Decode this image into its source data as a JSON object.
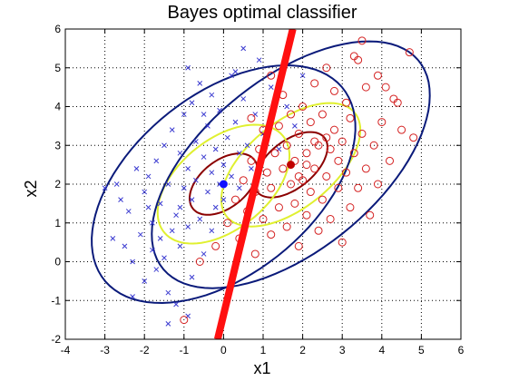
{
  "chart_data": {
    "type": "scatter",
    "title": "Bayes optimal classifier",
    "xlabel": "x1",
    "ylabel": "x2",
    "xlim": [
      -4,
      6
    ],
    "ylim": [
      -2,
      6
    ],
    "xticks": [
      -4,
      -3,
      -2,
      -1,
      0,
      1,
      2,
      3,
      4,
      5,
      6
    ],
    "yticks": [
      -2,
      -1,
      0,
      1,
      2,
      3,
      4,
      5,
      6
    ],
    "xtick_labels": [
      "-4",
      "-3",
      "-2",
      "-1",
      "0",
      "1",
      "2",
      "3",
      "4",
      "5",
      "6"
    ],
    "ytick_labels": [
      "-2",
      "-1",
      "0",
      "1",
      "2",
      "3",
      "4",
      "5",
      "6"
    ],
    "grid": true,
    "series": [
      {
        "marker": "x",
        "color": "#3a3ad0",
        "points": [
          [
            -3.0,
            1.9
          ],
          [
            -2.8,
            0.6
          ],
          [
            -2.7,
            2.0
          ],
          [
            -2.5,
            0.4
          ],
          [
            -2.4,
            1.3
          ],
          [
            -2.3,
            0.0
          ],
          [
            -2.2,
            2.4
          ],
          [
            -2.1,
            0.7
          ],
          [
            -2.0,
            -0.5
          ],
          [
            -2.0,
            1.8
          ],
          [
            -1.9,
            2.2
          ],
          [
            -1.8,
            0.3
          ],
          [
            -1.8,
            1.0
          ],
          [
            -1.7,
            -0.2
          ],
          [
            -1.7,
            2.6
          ],
          [
            -1.6,
            1.5
          ],
          [
            -1.5,
            0.1
          ],
          [
            -1.5,
            3.0
          ],
          [
            -1.4,
            -0.8
          ],
          [
            -1.4,
            2.0
          ],
          [
            -1.3,
            0.8
          ],
          [
            -1.3,
            3.4
          ],
          [
            -1.2,
            1.2
          ],
          [
            -1.2,
            -1.1
          ],
          [
            -1.1,
            2.8
          ],
          [
            -1.1,
            0.4
          ],
          [
            -1.0,
            1.9
          ],
          [
            -1.0,
            3.8
          ],
          [
            -0.9,
            0.9
          ],
          [
            -0.9,
            2.4
          ],
          [
            -0.8,
            1.6
          ],
          [
            -0.8,
            -0.4
          ],
          [
            -0.8,
            4.1
          ],
          [
            -0.7,
            2.1
          ],
          [
            -0.7,
            3.1
          ],
          [
            -0.6,
            1.1
          ],
          [
            -0.6,
            4.6
          ],
          [
            -0.5,
            2.7
          ],
          [
            -0.5,
            0.2
          ],
          [
            -0.4,
            1.8
          ],
          [
            -0.4,
            3.5
          ],
          [
            -0.3,
            2.3
          ],
          [
            -0.3,
            4.3
          ],
          [
            -0.2,
            1.4
          ],
          [
            -0.2,
            2.9
          ],
          [
            -0.1,
            2.0
          ],
          [
            -0.1,
            3.9
          ],
          [
            0.0,
            2.5
          ],
          [
            0.0,
            1.6
          ],
          [
            0.1,
            3.2
          ],
          [
            0.2,
            2.2
          ],
          [
            0.2,
            4.8
          ],
          [
            0.3,
            3.6
          ],
          [
            0.4,
            2.8
          ],
          [
            0.4,
            1.9
          ],
          [
            0.5,
            4.2
          ],
          [
            0.6,
            3.0
          ],
          [
            0.7,
            2.4
          ],
          [
            0.8,
            3.8
          ],
          [
            0.9,
            5.2
          ],
          [
            1.0,
            3.3
          ],
          [
            1.2,
            4.5
          ],
          [
            1.4,
            2.9
          ],
          [
            1.6,
            4.0
          ],
          [
            1.8,
            3.5
          ],
          [
            2.0,
            4.8
          ],
          [
            -1.4,
            -1.6
          ],
          [
            -0.9,
            -1.4
          ],
          [
            -2.3,
            -0.9
          ],
          [
            -1.9,
            1.4
          ],
          [
            -1.6,
            0.6
          ],
          [
            -0.3,
            0.8
          ],
          [
            0.5,
            5.5
          ],
          [
            -0.5,
            3.8
          ],
          [
            -0.9,
            5.0
          ],
          [
            -2.6,
            1.6
          ],
          [
            -1.1,
            1.4
          ],
          [
            0.3,
            4.9
          ]
        ]
      },
      {
        "marker": "o",
        "color": "#d42020",
        "points": [
          [
            -1.0,
            -1.5
          ],
          [
            -0.6,
            0.0
          ],
          [
            -0.2,
            0.4
          ],
          [
            0.1,
            1.0
          ],
          [
            0.3,
            1.6
          ],
          [
            0.4,
            0.6
          ],
          [
            0.5,
            2.1
          ],
          [
            0.6,
            1.3
          ],
          [
            0.7,
            2.6
          ],
          [
            0.8,
            0.2
          ],
          [
            0.8,
            1.8
          ],
          [
            0.9,
            2.9
          ],
          [
            1.0,
            1.1
          ],
          [
            1.0,
            3.4
          ],
          [
            1.1,
            2.3
          ],
          [
            1.2,
            0.7
          ],
          [
            1.2,
            1.9
          ],
          [
            1.3,
            2.8
          ],
          [
            1.4,
            3.5
          ],
          [
            1.4,
            1.4
          ],
          [
            1.5,
            2.4
          ],
          [
            1.5,
            4.3
          ],
          [
            1.6,
            0.9
          ],
          [
            1.6,
            3.0
          ],
          [
            1.7,
            2.0
          ],
          [
            1.7,
            3.8
          ],
          [
            1.8,
            1.5
          ],
          [
            1.8,
            2.6
          ],
          [
            1.9,
            3.3
          ],
          [
            1.9,
            0.4
          ],
          [
            2.0,
            2.1
          ],
          [
            2.0,
            4.0
          ],
          [
            2.1,
            1.2
          ],
          [
            2.1,
            2.8
          ],
          [
            2.2,
            3.6
          ],
          [
            2.2,
            1.8
          ],
          [
            2.3,
            2.4
          ],
          [
            2.3,
            4.6
          ],
          [
            2.4,
            3.0
          ],
          [
            2.4,
            0.8
          ],
          [
            2.5,
            1.6
          ],
          [
            2.5,
            3.8
          ],
          [
            2.6,
            2.2
          ],
          [
            2.6,
            5.0
          ],
          [
            2.7,
            2.9
          ],
          [
            2.7,
            1.1
          ],
          [
            2.8,
            3.4
          ],
          [
            2.8,
            4.4
          ],
          [
            2.9,
            1.9
          ],
          [
            2.9,
            2.6
          ],
          [
            3.0,
            3.1
          ],
          [
            3.0,
            0.5
          ],
          [
            3.1,
            2.3
          ],
          [
            3.1,
            4.1
          ],
          [
            3.2,
            1.4
          ],
          [
            3.2,
            3.7
          ],
          [
            3.3,
            2.8
          ],
          [
            3.3,
            5.3
          ],
          [
            3.4,
            1.9
          ],
          [
            3.5,
            3.3
          ],
          [
            3.6,
            2.4
          ],
          [
            3.6,
            4.5
          ],
          [
            3.7,
            1.2
          ],
          [
            3.8,
            3.0
          ],
          [
            3.9,
            2.0
          ],
          [
            3.9,
            4.8
          ],
          [
            4.0,
            3.6
          ],
          [
            4.2,
            2.6
          ],
          [
            4.3,
            4.2
          ],
          [
            4.5,
            3.4
          ],
          [
            4.7,
            5.4
          ],
          [
            4.8,
            3.2
          ],
          [
            3.5,
            5.7
          ],
          [
            4.1,
            4.5
          ],
          [
            2.6,
            3.2
          ],
          [
            1.9,
            2.2
          ],
          [
            2.3,
            3.1
          ],
          [
            2.1,
            2.5
          ],
          [
            0.7,
            3.7
          ],
          [
            1.2,
            4.8
          ],
          [
            4.4,
            4.1
          ],
          [
            3.4,
            5.2
          ]
        ]
      }
    ],
    "means": [
      {
        "x": 0.0,
        "y": 2.0,
        "color": "#1010ff"
      },
      {
        "x": 1.7,
        "y": 2.5,
        "color": "#c00000"
      }
    ],
    "ellipses": [
      {
        "cx": 0.0,
        "cy": 2.0,
        "rx": 1.0,
        "ry": 0.6,
        "angle": 40,
        "color": "#8b0000"
      },
      {
        "cx": 1.7,
        "cy": 2.5,
        "rx": 1.1,
        "ry": 0.6,
        "angle": 40,
        "color": "#8b0000"
      },
      {
        "cx": 0.0,
        "cy": 2.0,
        "rx": 1.95,
        "ry": 1.15,
        "angle": 40,
        "color": "#e0f030"
      },
      {
        "cx": 1.7,
        "cy": 2.5,
        "rx": 2.1,
        "ry": 1.1,
        "angle": 40,
        "color": "#e0f030"
      },
      {
        "cx": 0.0,
        "cy": 2.0,
        "rx": 3.9,
        "ry": 2.3,
        "angle": 40,
        "color": "#0a1a7a"
      },
      {
        "cx": 1.7,
        "cy": 2.5,
        "rx": 4.2,
        "ry": 2.2,
        "angle": 40,
        "color": "#0a1a7a"
      }
    ],
    "decision_boundary": {
      "color": "#ff1010",
      "points": [
        [
          -0.15,
          -2.0
        ],
        [
          1.75,
          6.0
        ]
      ]
    }
  }
}
